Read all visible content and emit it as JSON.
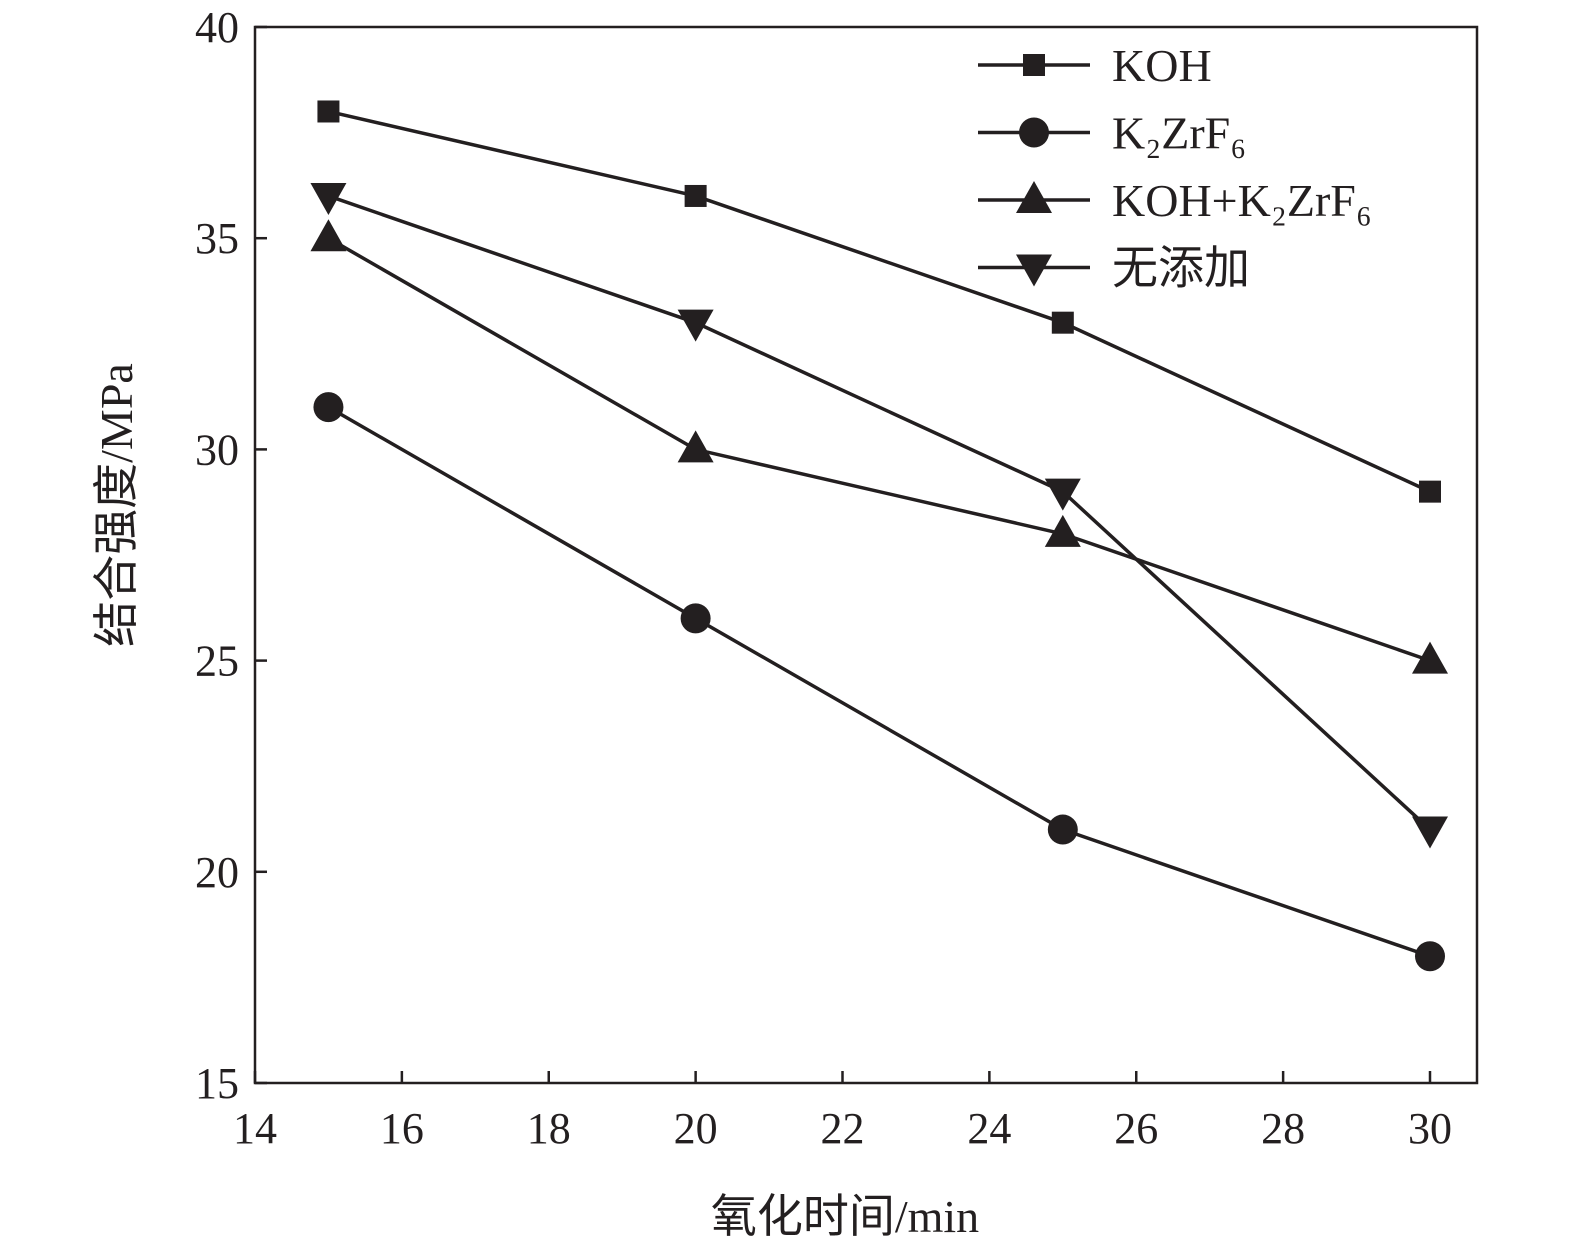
{
  "chart_data": {
    "type": "line",
    "title": "",
    "xlabel": "氧化时间/min",
    "ylabel": "结合强度/MPa",
    "xlim": [
      14,
      30.64
    ],
    "ylim": [
      15,
      40
    ],
    "xticks": [
      "14",
      "16",
      "18",
      "20",
      "22",
      "24",
      "26",
      "28",
      "30"
    ],
    "yticks": [
      "15",
      "20",
      "25",
      "30",
      "35",
      "40"
    ],
    "grid": false,
    "legend_position": "top-right",
    "x": [
      15,
      20,
      25,
      30
    ],
    "series": [
      {
        "name": "KOH",
        "marker": "square",
        "values": [
          38,
          36,
          33,
          29
        ]
      },
      {
        "name": "K₂ZrF₆",
        "marker": "circle",
        "values": [
          31,
          26,
          21,
          18
        ]
      },
      {
        "name": "KOH+K₂ZrF₆",
        "marker": "triangle-up",
        "values": [
          35,
          30,
          28,
          25
        ]
      },
      {
        "name": "无添加",
        "marker": "triangle-down",
        "values": [
          36,
          33,
          29,
          21
        ]
      }
    ],
    "color": "#231f20"
  }
}
